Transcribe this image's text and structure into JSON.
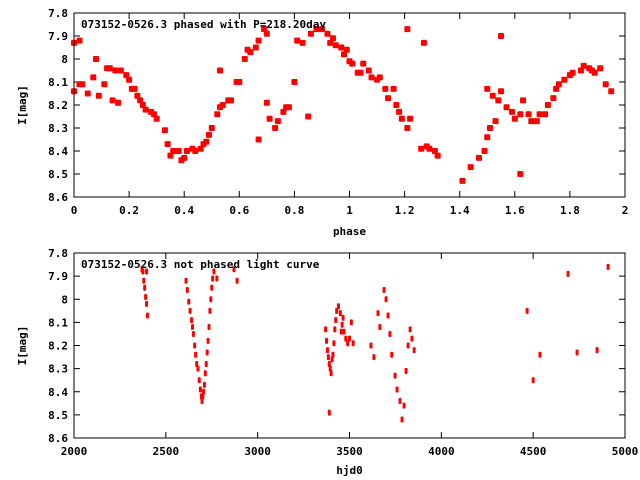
{
  "chart_data": [
    {
      "type": "scatter",
      "title": "073152-0526.3 phased with P=218.20day",
      "xlabel": "phase",
      "ylabel": "I[mag]",
      "xlim": [
        0,
        2
      ],
      "ylim": [
        7.8,
        8.6
      ],
      "y_inverted": true,
      "xticks": [
        "0",
        "0.2",
        "0.4",
        "0.6",
        "0.8",
        "1",
        "1.2",
        "1.4",
        "1.6",
        "1.8",
        "2"
      ],
      "yticks": [
        "7.8",
        "7.9",
        "8",
        "8.1",
        "8.2",
        "8.3",
        "8.4",
        "8.5",
        "8.6"
      ],
      "marker_color": "#ff0000",
      "points": [
        [
          0.0,
          7.93
        ],
        [
          0.0,
          8.14
        ],
        [
          0.02,
          7.92
        ],
        [
          0.02,
          8.11
        ],
        [
          0.03,
          8.11
        ],
        [
          0.05,
          8.15
        ],
        [
          0.07,
          8.08
        ],
        [
          0.08,
          8.0
        ],
        [
          0.09,
          8.16
        ],
        [
          0.11,
          8.11
        ],
        [
          0.12,
          8.04
        ],
        [
          0.13,
          8.04
        ],
        [
          0.15,
          8.05
        ],
        [
          0.14,
          8.18
        ],
        [
          0.16,
          8.19
        ],
        [
          0.17,
          8.05
        ],
        [
          0.19,
          8.07
        ],
        [
          0.2,
          8.09
        ],
        [
          0.21,
          8.13
        ],
        [
          0.22,
          8.13
        ],
        [
          0.23,
          8.16
        ],
        [
          0.24,
          8.18
        ],
        [
          0.25,
          8.2
        ],
        [
          0.26,
          8.22
        ],
        [
          0.28,
          8.23
        ],
        [
          0.29,
          8.24
        ],
        [
          0.3,
          8.26
        ],
        [
          0.33,
          8.31
        ],
        [
          0.34,
          8.37
        ],
        [
          0.35,
          8.42
        ],
        [
          0.36,
          8.4
        ],
        [
          0.37,
          8.4
        ],
        [
          0.38,
          8.4
        ],
        [
          0.39,
          8.44
        ],
        [
          0.4,
          8.43
        ],
        [
          0.41,
          8.4
        ],
        [
          0.43,
          8.39
        ],
        [
          0.44,
          8.4
        ],
        [
          0.46,
          8.39
        ],
        [
          0.47,
          8.37
        ],
        [
          0.48,
          8.36
        ],
        [
          0.49,
          8.33
        ],
        [
          0.5,
          8.3
        ],
        [
          0.52,
          8.24
        ],
        [
          0.53,
          8.05
        ],
        [
          0.53,
          8.21
        ],
        [
          0.54,
          8.2
        ],
        [
          0.56,
          8.18
        ],
        [
          0.57,
          8.18
        ],
        [
          0.59,
          8.1
        ],
        [
          0.6,
          8.1
        ],
        [
          0.62,
          8.0
        ],
        [
          0.63,
          7.96
        ],
        [
          0.64,
          7.97
        ],
        [
          0.66,
          7.95
        ],
        [
          0.67,
          7.92
        ],
        [
          0.69,
          7.87
        ],
        [
          0.7,
          7.89
        ],
        [
          0.71,
          8.26
        ],
        [
          0.67,
          8.35
        ],
        [
          0.7,
          8.19
        ],
        [
          0.73,
          8.3
        ],
        [
          0.74,
          8.27
        ],
        [
          0.76,
          8.23
        ],
        [
          0.77,
          8.21
        ],
        [
          0.78,
          8.21
        ],
        [
          0.8,
          8.1
        ],
        [
          0.81,
          7.92
        ],
        [
          0.83,
          7.93
        ],
        [
          0.85,
          8.25
        ],
        [
          0.86,
          7.89
        ],
        [
          0.88,
          7.87
        ],
        [
          0.9,
          7.87
        ],
        [
          0.92,
          7.89
        ],
        [
          0.93,
          7.93
        ],
        [
          0.94,
          7.91
        ],
        [
          0.95,
          7.94
        ],
        [
          0.97,
          7.95
        ],
        [
          0.98,
          7.98
        ],
        [
          0.99,
          7.96
        ],
        [
          1.0,
          8.01
        ],
        [
          1.01,
          8.02
        ],
        [
          1.03,
          8.06
        ],
        [
          1.04,
          8.06
        ],
        [
          1.05,
          8.02
        ],
        [
          1.07,
          8.05
        ],
        [
          1.08,
          8.08
        ],
        [
          1.1,
          8.09
        ],
        [
          1.11,
          8.08
        ],
        [
          1.13,
          8.13
        ],
        [
          1.14,
          8.17
        ],
        [
          1.16,
          8.13
        ],
        [
          1.17,
          8.2
        ],
        [
          1.18,
          8.23
        ],
        [
          1.19,
          8.26
        ],
        [
          1.21,
          8.3
        ],
        [
          1.21,
          7.87
        ],
        [
          1.22,
          8.26
        ],
        [
          1.26,
          8.39
        ],
        [
          1.27,
          7.93
        ],
        [
          1.28,
          8.38
        ],
        [
          1.29,
          8.39
        ],
        [
          1.31,
          8.4
        ],
        [
          1.32,
          8.42
        ],
        [
          1.41,
          8.53
        ],
        [
          1.44,
          8.47
        ],
        [
          1.47,
          8.43
        ],
        [
          1.49,
          8.4
        ],
        [
          1.5,
          8.34
        ],
        [
          1.51,
          8.3
        ],
        [
          1.53,
          8.27
        ],
        [
          1.5,
          8.13
        ],
        [
          1.52,
          8.16
        ],
        [
          1.54,
          8.18
        ],
        [
          1.55,
          8.14
        ],
        [
          1.55,
          7.9
        ],
        [
          1.57,
          8.21
        ],
        [
          1.59,
          8.23
        ],
        [
          1.6,
          8.26
        ],
        [
          1.62,
          8.24
        ],
        [
          1.63,
          8.18
        ],
        [
          1.62,
          8.5
        ],
        [
          1.65,
          8.24
        ],
        [
          1.66,
          8.27
        ],
        [
          1.68,
          8.27
        ],
        [
          1.69,
          8.24
        ],
        [
          1.71,
          8.24
        ],
        [
          1.72,
          8.2
        ],
        [
          1.74,
          8.17
        ],
        [
          1.75,
          8.13
        ],
        [
          1.76,
          8.11
        ],
        [
          1.78,
          8.09
        ],
        [
          1.8,
          8.07
        ],
        [
          1.81,
          8.06
        ],
        [
          1.84,
          8.05
        ],
        [
          1.85,
          8.03
        ],
        [
          1.87,
          8.04
        ],
        [
          1.88,
          8.05
        ],
        [
          1.89,
          8.06
        ],
        [
          1.91,
          8.04
        ],
        [
          1.93,
          8.11
        ],
        [
          1.95,
          8.14
        ]
      ]
    },
    {
      "type": "scatter",
      "title": "073152-0526.3 not phased light curve",
      "xlabel": "hjd0",
      "ylabel": "I[mag]",
      "xlim": [
        2000,
        5000
      ],
      "ylim": [
        7.8,
        8.6
      ],
      "y_inverted": true,
      "xticks": [
        "2000",
        "2500",
        "3000",
        "3500",
        "4000",
        "4500",
        "5000"
      ],
      "yticks": [
        "7.8",
        "7.9",
        "8",
        "8.1",
        "8.2",
        "8.3",
        "8.4",
        "8.5",
        "8.6"
      ],
      "marker_color": "#ff0000",
      "points": [
        [
          2370,
          7.87
        ],
        [
          2375,
          7.88
        ],
        [
          2380,
          7.92
        ],
        [
          2385,
          7.95
        ],
        [
          2390,
          7.99
        ],
        [
          2395,
          8.02
        ],
        [
          2400,
          8.07
        ],
        [
          2395,
          7.88
        ],
        [
          2610,
          7.92
        ],
        [
          2617,
          7.96
        ],
        [
          2625,
          8.01
        ],
        [
          2632,
          8.05
        ],
        [
          2640,
          8.09
        ],
        [
          2645,
          8.12
        ],
        [
          2650,
          8.15
        ],
        [
          2657,
          8.2
        ],
        [
          2662,
          8.24
        ],
        [
          2668,
          8.28
        ],
        [
          2675,
          8.3
        ],
        [
          2682,
          8.35
        ],
        [
          2688,
          8.39
        ],
        [
          2693,
          8.42
        ],
        [
          2697,
          8.44
        ],
        [
          2701,
          8.42
        ],
        [
          2705,
          8.4
        ],
        [
          2710,
          8.37
        ],
        [
          2715,
          8.32
        ],
        [
          2720,
          8.28
        ],
        [
          2725,
          8.23
        ],
        [
          2730,
          8.18
        ],
        [
          2735,
          8.12
        ],
        [
          2740,
          8.05
        ],
        [
          2745,
          8.0
        ],
        [
          2750,
          7.95
        ],
        [
          2755,
          7.91
        ],
        [
          2762,
          7.88
        ],
        [
          2778,
          7.91
        ],
        [
          2871,
          7.87
        ],
        [
          2888,
          7.92
        ],
        [
          3370,
          8.13
        ],
        [
          3375,
          8.18
        ],
        [
          3380,
          8.22
        ],
        [
          3385,
          8.25
        ],
        [
          3390,
          8.28
        ],
        [
          3395,
          8.3
        ],
        [
          3400,
          8.32
        ],
        [
          3405,
          8.26
        ],
        [
          3390,
          8.49
        ],
        [
          3410,
          8.24
        ],
        [
          3415,
          8.19
        ],
        [
          3420,
          8.13
        ],
        [
          3425,
          8.09
        ],
        [
          3430,
          8.05
        ],
        [
          3440,
          8.03
        ],
        [
          3450,
          8.06
        ],
        [
          3460,
          8.11
        ],
        [
          3470,
          8.14
        ],
        [
          3480,
          8.17
        ],
        [
          3490,
          8.19
        ],
        [
          3500,
          8.17
        ],
        [
          3510,
          8.1
        ],
        [
          3520,
          8.19
        ],
        [
          3455,
          8.14
        ],
        [
          3465,
          8.08
        ],
        [
          3617,
          8.2
        ],
        [
          3633,
          8.25
        ],
        [
          3655,
          8.06
        ],
        [
          3665,
          8.12
        ],
        [
          3688,
          7.96
        ],
        [
          3699,
          8.0
        ],
        [
          3710,
          8.07
        ],
        [
          3720,
          8.15
        ],
        [
          3730,
          8.24
        ],
        [
          3748,
          8.33
        ],
        [
          3759,
          8.39
        ],
        [
          3775,
          8.44
        ],
        [
          3786,
          8.52
        ],
        [
          3797,
          8.46
        ],
        [
          3808,
          8.31
        ],
        [
          3819,
          8.2
        ],
        [
          3830,
          8.13
        ],
        [
          3840,
          8.17
        ],
        [
          3852,
          8.22
        ],
        [
          4467,
          8.05
        ],
        [
          4500,
          8.35
        ],
        [
          4537,
          8.24
        ],
        [
          4690,
          7.89
        ],
        [
          4739,
          8.23
        ],
        [
          4848,
          8.22
        ],
        [
          4908,
          7.86
        ]
      ]
    }
  ]
}
